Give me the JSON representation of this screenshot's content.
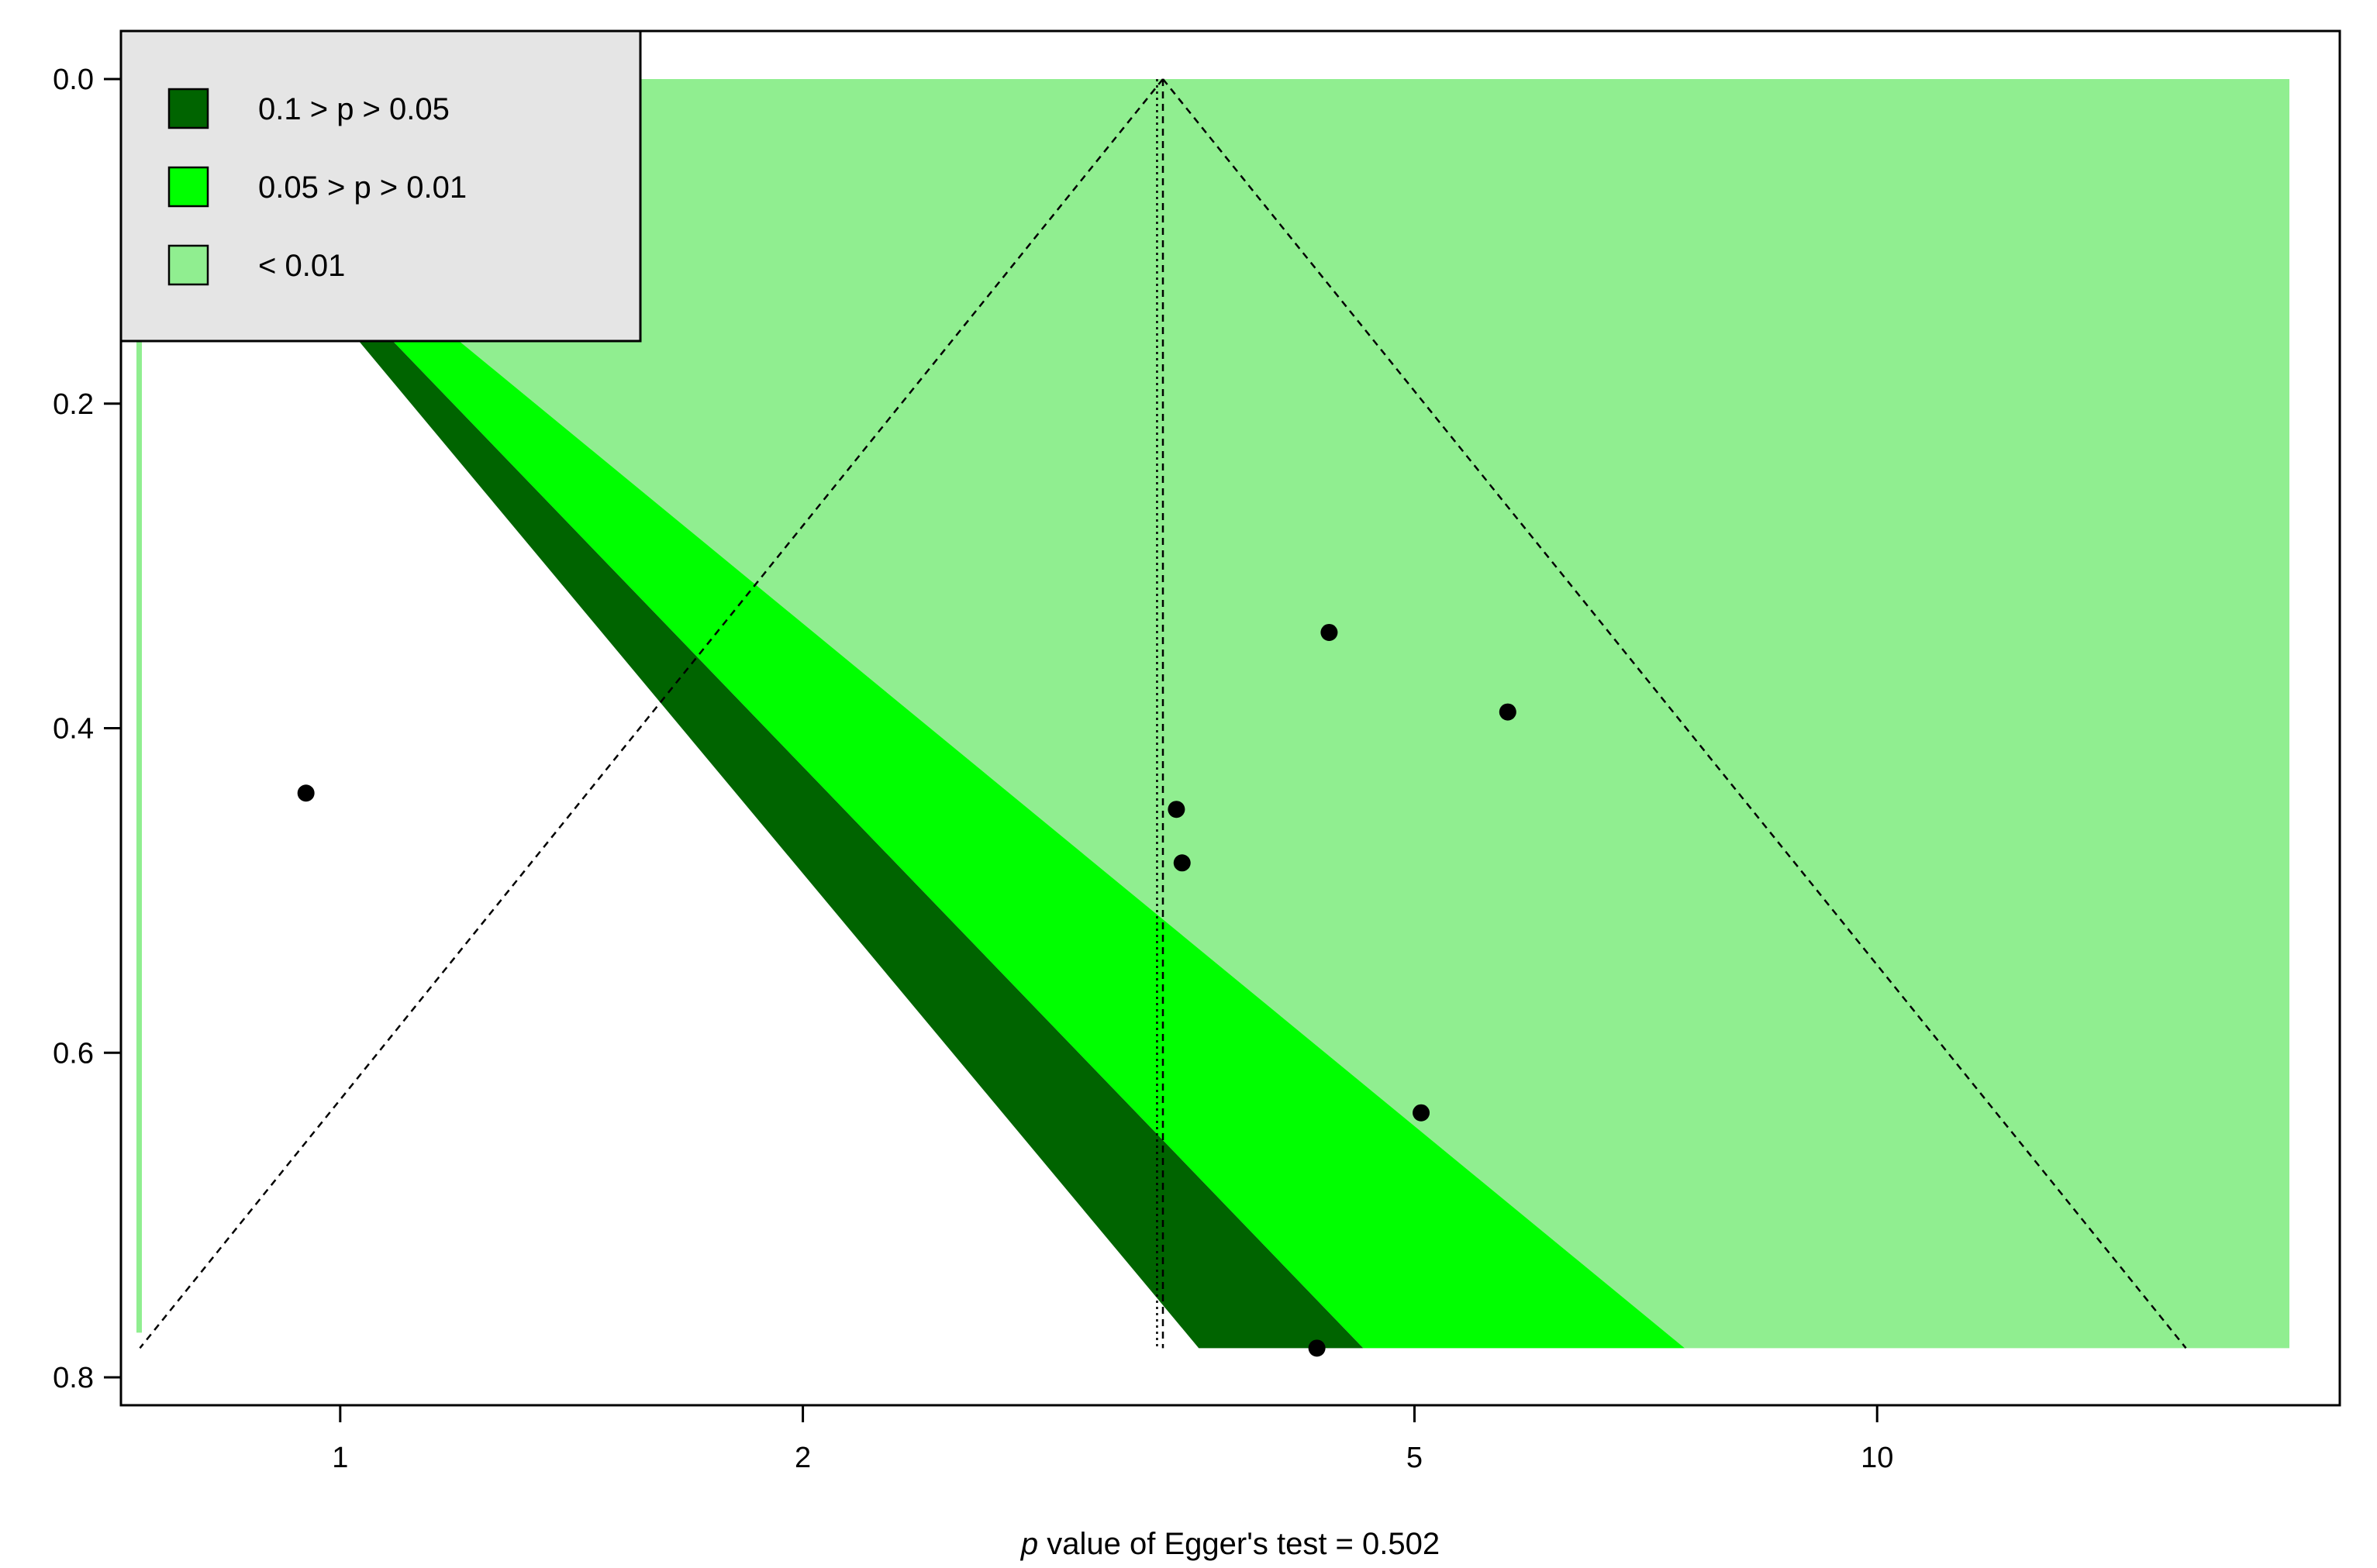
{
  "chart_data": {
    "type": "scatter",
    "subtype": "contour-enhanced funnel plot",
    "x_scale": "log",
    "y_reversed": true,
    "xlim": [
      0.72,
      20
    ],
    "ylim": [
      0.8,
      0.0
    ],
    "x_ticks": [
      1,
      2,
      5,
      10
    ],
    "x_tick_labels": [
      "1",
      "2",
      "5",
      "10"
    ],
    "y_ticks": [
      0.0,
      0.2,
      0.4,
      0.6,
      0.8
    ],
    "y_tick_labels": [
      "0.0",
      "0.2",
      "0.4",
      "0.6",
      "0.8"
    ],
    "xlabel_italic": "p",
    "xlabel_rest": " value of Egger's test = 0.502",
    "points": [
      {
        "x": 0.95,
        "y": 0.44
      },
      {
        "x": 3.5,
        "y": 0.45
      },
      {
        "x": 3.53,
        "y": 0.483
      },
      {
        "x": 4.4,
        "y": 0.341
      },
      {
        "x": 5.75,
        "y": 0.39
      },
      {
        "x": 5.05,
        "y": 0.637
      },
      {
        "x": 4.32,
        "y": 0.782
      }
    ],
    "pooled_estimate": 3.43,
    "fixed_estimate": 3.4,
    "se_max": 0.782,
    "legend": {
      "placement": "top-left",
      "entries": [
        {
          "label": "0.1 > p > 0.05",
          "color": "#006400"
        },
        {
          "label": "0.05 > p > 0.01",
          "color": "#00ff00"
        },
        {
          "label": "< 0.01",
          "color": "#90ee90"
        }
      ]
    },
    "legend_background": "#e5e5e5",
    "grid": false
  }
}
